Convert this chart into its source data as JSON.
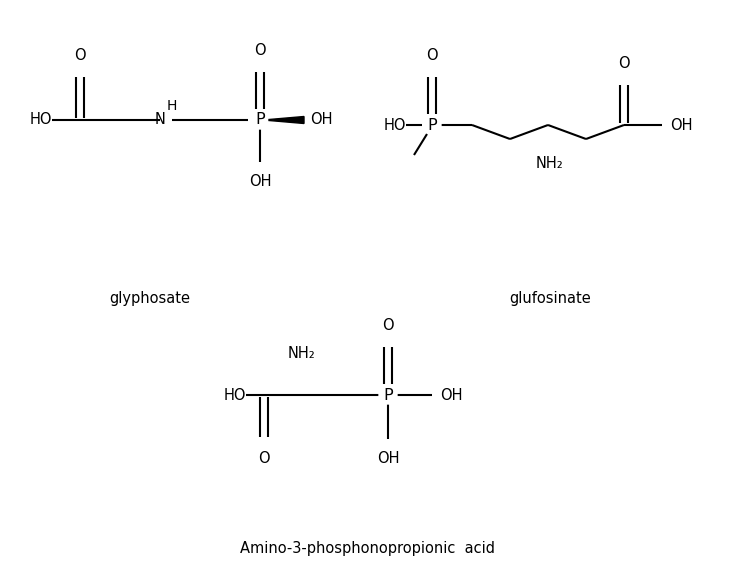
{
  "bg_color": "#ffffff",
  "line_color": "#000000",
  "line_width": 1.5,
  "font_size": 10.5,
  "label_font_size": 10.5,
  "glyphosate_label": "glyphosate",
  "glufosinate_label": "glufosinate",
  "amino_label": "Amino-3-phosphonopropionic  acid",
  "fig_width": 7.35,
  "fig_height": 5.86,
  "dpi": 100
}
